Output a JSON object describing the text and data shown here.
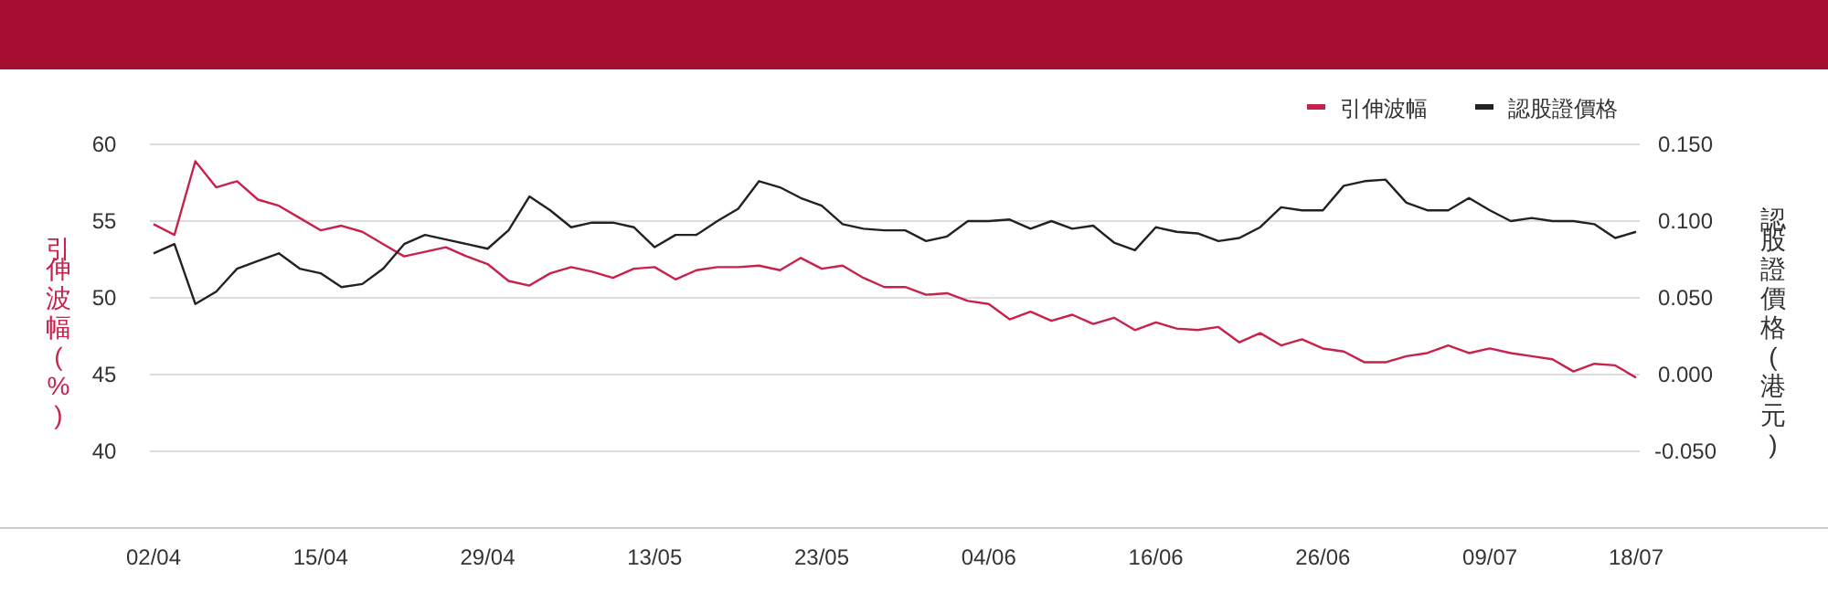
{
  "chart_data": {
    "type": "line",
    "ylabel": "引伸波幅(%)",
    "y2label": "認股證價格(港元)",
    "categories": [
      "02/04",
      null,
      null,
      null,
      null,
      null,
      null,
      null,
      "15/04",
      null,
      null,
      null,
      null,
      null,
      null,
      null,
      "29/04",
      null,
      null,
      null,
      null,
      null,
      null,
      null,
      "13/05",
      null,
      null,
      null,
      null,
      null,
      null,
      null,
      "23/05",
      null,
      null,
      null,
      null,
      null,
      null,
      null,
      "04/06",
      null,
      null,
      null,
      null,
      null,
      null,
      null,
      "16/06",
      null,
      null,
      null,
      null,
      null,
      null,
      null,
      "26/06",
      null,
      null,
      null,
      null,
      null,
      null,
      null,
      "09/07",
      null,
      null,
      null,
      null,
      null,
      null,
      "18/07"
    ],
    "series": [
      {
        "name": "引伸波幅",
        "color": "#c8224c",
        "values": [
          54.8,
          54.1,
          58.9,
          57.2,
          57.6,
          56.4,
          56.0,
          55.2,
          54.4,
          54.7,
          54.3,
          53.5,
          52.7,
          53.0,
          53.3,
          52.7,
          52.2,
          51.1,
          50.8,
          51.6,
          52.0,
          51.7,
          51.3,
          51.9,
          52.0,
          51.2,
          51.8,
          52.0,
          52.0,
          52.1,
          51.8,
          52.6,
          51.9,
          52.1,
          51.3,
          50.7,
          50.7,
          50.2,
          50.3,
          49.8,
          49.6,
          48.6,
          49.1,
          48.5,
          48.9,
          48.3,
          48.7,
          47.9,
          48.4,
          48.0,
          47.9,
          48.1,
          47.1,
          47.7,
          46.9,
          47.3,
          46.7,
          46.5,
          45.8,
          45.8,
          46.2,
          46.4,
          46.9,
          46.4,
          46.7,
          46.4,
          46.2,
          46.0,
          45.2,
          45.7,
          45.6,
          44.8
        ]
      },
      {
        "name": "認股證價格",
        "color": "#222222",
        "axis": "y2",
        "values": [
          0.079,
          0.085,
          0.046,
          0.054,
          0.069,
          0.074,
          0.079,
          0.069,
          0.066,
          0.057,
          0.059,
          0.069,
          0.085,
          0.091,
          0.088,
          0.085,
          0.082,
          0.094,
          0.116,
          0.107,
          0.096,
          0.099,
          0.099,
          0.096,
          0.083,
          0.091,
          0.091,
          0.1,
          0.108,
          0.126,
          0.122,
          0.115,
          0.11,
          0.098,
          0.095,
          0.094,
          0.094,
          0.087,
          0.09,
          0.1,
          0.1,
          0.101,
          0.095,
          0.1,
          0.095,
          0.097,
          0.086,
          0.081,
          0.096,
          0.093,
          0.092,
          0.087,
          0.089,
          0.096,
          0.109,
          0.107,
          0.107,
          0.123,
          0.126,
          0.127,
          0.112,
          0.107,
          0.107,
          0.115,
          0.107,
          0.1,
          0.102,
          0.1,
          0.1,
          0.098,
          0.089,
          0.093
        ]
      }
    ],
    "ylim": [
      35,
      60
    ],
    "yticks": [
      40,
      45,
      50,
      55,
      60
    ],
    "y2lim": [
      -0.1,
      0.15
    ],
    "y2ticks": [
      {
        "value": -0.05,
        "label": "-0.050"
      },
      {
        "value": 0,
        "label": "0.000"
      },
      {
        "value": 0.05,
        "label": "0.050"
      },
      {
        "value": 0.1,
        "label": "0.100"
      },
      {
        "value": 0.15,
        "label": "0.150"
      }
    ],
    "grid": "y",
    "legend": "top right",
    "marker": "none",
    "line_style": "solid"
  }
}
